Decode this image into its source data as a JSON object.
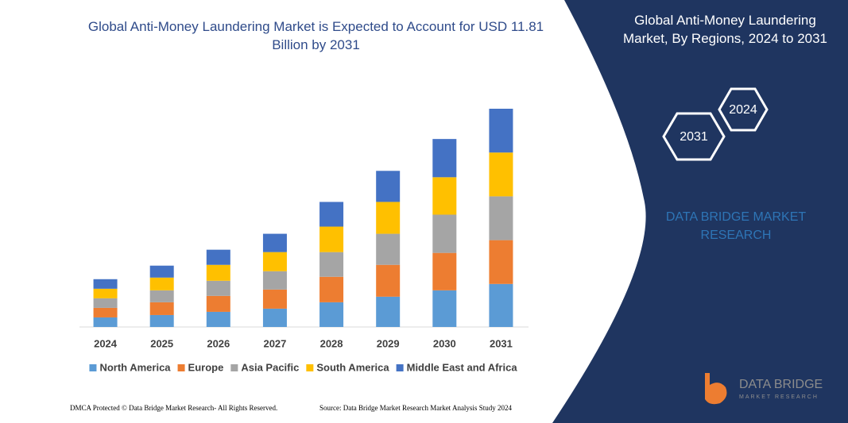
{
  "chart_data": {
    "type": "bar",
    "stacked": true,
    "title": "Global Anti-Money Laundering Market is Expected to Account for USD 11.81 Billion by 2031",
    "categories": [
      "2024",
      "2025",
      "2026",
      "2027",
      "2028",
      "2029",
      "2030",
      "2031"
    ],
    "series": [
      {
        "name": "North America",
        "color": "#5b9bd5",
        "values": [
          12,
          15,
          19,
          23,
          31,
          38,
          46,
          54
        ]
      },
      {
        "name": "Europe",
        "color": "#ed7d31",
        "values": [
          12,
          16,
          20,
          24,
          32,
          40,
          47,
          55
        ]
      },
      {
        "name": "Asia Pacific",
        "color": "#a5a5a5",
        "values": [
          12,
          15,
          19,
          23,
          31,
          39,
          48,
          55
        ]
      },
      {
        "name": "South America",
        "color": "#ffc000",
        "values": [
          12,
          16,
          20,
          24,
          32,
          40,
          47,
          55
        ]
      },
      {
        "name": "Middle East and Africa",
        "color": "#4472c4",
        "values": [
          12,
          15,
          19,
          23,
          31,
          39,
          48,
          55
        ]
      }
    ]
  },
  "panel": {
    "title": "Global Anti-Money Laundering Market, By Regions, 2024 to 2031",
    "hex_labels": [
      "2024",
      "2031"
    ],
    "brand": "DATA BRIDGE MARKET RESEARCH"
  },
  "footer": {
    "dmca": "DMCA Protected © Data Bridge Market Research-  All Rights Reserved.",
    "source": "Source: Data Bridge Market Research  Market Analysis Study 2024"
  },
  "logo": {
    "name": "DATA BRIDGE",
    "tagline": "MARKET RESEARCH"
  }
}
